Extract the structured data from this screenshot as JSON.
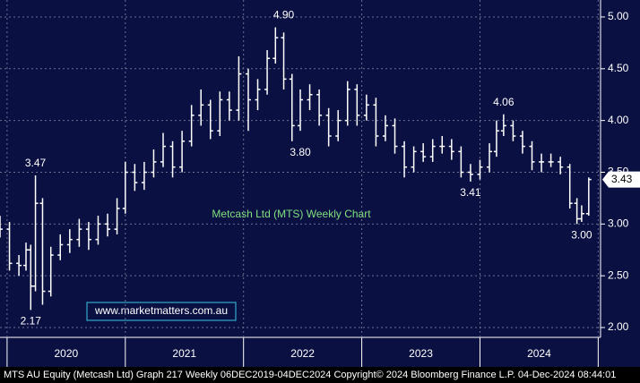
{
  "chart_data": {
    "type": "ohlc",
    "title": "Metcash Ltd (MTS) Weekly Chart",
    "watermark": "www.marketmatters.com.au",
    "footer": "MTS AU Equity (Metcash Ltd) Graph 217  Weekly 06DEC2019-04DEC2024  Copyright© 2024 Bloomberg Finance L.P.  04-Dec-2024 08:44:01",
    "color": "#ffffff",
    "x": [
      2019.94,
      2020.02,
      2020.1,
      2020.16,
      2020.2,
      2020.24,
      2020.3,
      2020.37,
      2020.45,
      2020.53,
      2020.61,
      2020.69,
      2020.77,
      2020.85,
      2020.93,
      2021.0,
      2021.08,
      2021.16,
      2021.24,
      2021.32,
      2021.4,
      2021.48,
      2021.56,
      2021.64,
      2021.72,
      2021.8,
      2021.88,
      2021.96,
      2022.04,
      2022.12,
      2022.2,
      2022.27,
      2022.34,
      2022.41,
      2022.48,
      2022.56,
      2022.64,
      2022.72,
      2022.8,
      2022.88,
      2022.96,
      2023.04,
      2023.12,
      2023.2,
      2023.28,
      2023.36,
      2023.44,
      2023.52,
      2023.6,
      2023.68,
      2023.76,
      2023.84,
      2023.92,
      2024.0,
      2024.08,
      2024.14,
      2024.2,
      2024.28,
      2024.36,
      2024.44,
      2024.52,
      2024.6,
      2024.68,
      2024.76,
      2024.82,
      2024.86,
      2024.92
    ],
    "open": [
      3.0,
      2.95,
      2.62,
      2.6,
      2.75,
      2.4,
      3.2,
      2.35,
      2.7,
      2.8,
      2.85,
      2.95,
      2.85,
      3.0,
      2.95,
      3.15,
      3.5,
      3.4,
      3.5,
      3.6,
      3.75,
      3.55,
      3.8,
      4.05,
      4.15,
      3.9,
      4.2,
      4.1,
      4.45,
      4.2,
      4.3,
      4.6,
      4.8,
      4.4,
      3.95,
      4.2,
      4.25,
      4.05,
      3.85,
      4.0,
      4.3,
      4.05,
      4.15,
      3.85,
      3.95,
      3.75,
      3.55,
      3.7,
      3.65,
      3.75,
      3.75,
      3.7,
      3.5,
      3.48,
      3.55,
      3.7,
      3.9,
      3.95,
      3.85,
      3.75,
      3.6,
      3.6,
      3.6,
      3.55,
      3.2,
      3.05,
      3.1
    ],
    "high": [
      3.08,
      3.02,
      2.7,
      2.82,
      2.8,
      3.47,
      3.25,
      2.78,
      2.9,
      2.95,
      3.05,
      3.02,
      3.08,
      3.1,
      3.25,
      3.6,
      3.58,
      3.6,
      3.72,
      3.88,
      3.8,
      3.9,
      4.15,
      4.3,
      4.2,
      4.28,
      4.28,
      4.62,
      4.5,
      4.4,
      4.68,
      4.9,
      4.85,
      4.45,
      4.3,
      4.35,
      4.3,
      4.12,
      4.1,
      4.38,
      4.35,
      4.25,
      4.22,
      4.05,
      4.02,
      3.8,
      3.75,
      3.78,
      3.82,
      3.85,
      3.82,
      3.75,
      3.58,
      3.62,
      3.78,
      4.0,
      4.06,
      4.0,
      3.9,
      3.8,
      3.68,
      3.68,
      3.65,
      3.58,
      3.25,
      3.18,
      3.45
    ],
    "low": [
      2.87,
      2.55,
      2.5,
      2.55,
      2.17,
      2.35,
      2.22,
      2.3,
      2.65,
      2.72,
      2.78,
      2.75,
      2.8,
      2.88,
      2.9,
      3.1,
      3.32,
      3.33,
      3.45,
      3.55,
      3.45,
      3.5,
      3.75,
      3.95,
      3.82,
      3.85,
      4.0,
      4.0,
      3.9,
      4.1,
      4.25,
      4.55,
      4.3,
      3.8,
      3.9,
      4.1,
      3.95,
      3.75,
      3.8,
      3.95,
      3.95,
      4.0,
      3.75,
      3.8,
      3.68,
      3.45,
      3.5,
      3.6,
      3.6,
      3.68,
      3.62,
      3.45,
      3.41,
      3.43,
      3.5,
      3.65,
      3.85,
      3.8,
      3.68,
      3.52,
      3.5,
      3.55,
      3.48,
      3.15,
      3.0,
      3.02,
      3.08
    ],
    "close": [
      2.95,
      2.62,
      2.6,
      2.75,
      2.4,
      3.2,
      2.35,
      2.7,
      2.8,
      2.85,
      2.95,
      2.85,
      3.0,
      2.95,
      3.15,
      3.5,
      3.4,
      3.5,
      3.6,
      3.75,
      3.55,
      3.8,
      4.05,
      4.15,
      3.9,
      4.2,
      4.1,
      4.45,
      4.2,
      4.3,
      4.6,
      4.8,
      4.4,
      3.95,
      4.2,
      4.25,
      4.05,
      3.85,
      4.0,
      4.3,
      4.05,
      4.15,
      3.85,
      3.95,
      3.75,
      3.55,
      3.7,
      3.65,
      3.75,
      3.75,
      3.7,
      3.5,
      3.48,
      3.55,
      3.7,
      3.9,
      3.95,
      3.85,
      3.75,
      3.6,
      3.6,
      3.6,
      3.55,
      3.2,
      3.05,
      3.1,
      3.43
    ],
    "last_value": 3.43,
    "annotations": [
      {
        "label": "3.47",
        "x": 2020.24,
        "y": 3.47,
        "position": "above"
      },
      {
        "label": "2.17",
        "x": 2020.2,
        "y": 2.17,
        "position": "below"
      },
      {
        "label": "4.90",
        "x": 2022.34,
        "y": 4.9,
        "position": "above"
      },
      {
        "label": "3.80",
        "x": 2022.48,
        "y": 3.8,
        "position": "below"
      },
      {
        "label": "3.41",
        "x": 2023.92,
        "y": 3.41,
        "position": "below"
      },
      {
        "label": "4.06",
        "x": 2024.2,
        "y": 4.06,
        "position": "above"
      },
      {
        "label": "3.00",
        "x": 2024.86,
        "y": 3.0,
        "position": "below"
      }
    ],
    "xlim": [
      2019.94,
      2025.02
    ],
    "xticks": [
      {
        "value": 2020.5,
        "label": "2020"
      },
      {
        "value": 2021.5,
        "label": "2021"
      },
      {
        "value": 2022.5,
        "label": "2022"
      },
      {
        "value": 2023.5,
        "label": "2023"
      },
      {
        "value": 2024.5,
        "label": "2024"
      }
    ],
    "ylim": [
      1.905,
      5.164
    ],
    "yticks": [
      {
        "value": 2,
        "label": "2.00"
      },
      {
        "value": 2.5,
        "label": "2.50"
      },
      {
        "value": 3,
        "label": "3.00"
      },
      {
        "value": 3.5,
        "label": "3.50"
      },
      {
        "value": 4,
        "label": "4.00"
      },
      {
        "value": 4.5,
        "label": "4.50"
      },
      {
        "value": 5,
        "label": "5.00"
      }
    ],
    "grid": true
  }
}
